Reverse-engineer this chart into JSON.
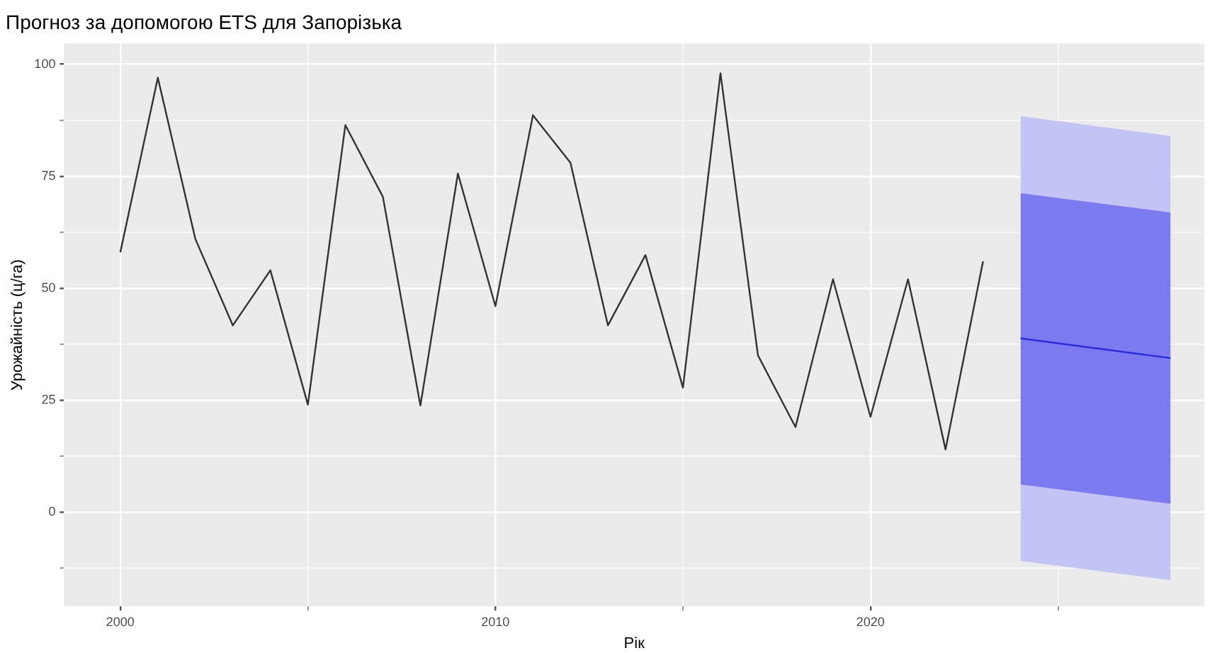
{
  "chart_data": {
    "type": "line",
    "title": "Прогноз за допомогою ETS для Запорізька",
    "xlabel": "Рік",
    "ylabel": "Урожайність (ц/га)",
    "series": [
      {
        "color": "#c3c3f5",
        "x": [
          2024,
          2028
        ],
        "values": [
          null,
          null
        ],
        "lower": [
          -10.9,
          -15.2
        ],
        "upper": [
          88.4,
          84
        ]
      },
      {
        "color": "#7b7bef",
        "x": [
          2024,
          2028
        ],
        "values": [
          null,
          null
        ],
        "lower": [
          6.2,
          1.9
        ],
        "upper": [
          71.2,
          66.9
        ]
      },
      {
        "color": "#333333",
        "x": [
          2000,
          2001,
          2002,
          2003,
          2004,
          2005,
          2006,
          2007,
          2008,
          2009,
          2010,
          2011,
          2012,
          2013,
          2014,
          2015,
          2016,
          2017,
          2018,
          2019,
          2020,
          2021,
          2022,
          2023
        ],
        "values": [
          58,
          97,
          61,
          41.7,
          54,
          24,
          86.4,
          70.4,
          23.8,
          75.6,
          46,
          88.6,
          78,
          41.7,
          57.4,
          27.8,
          98,
          35,
          19,
          52,
          21.3,
          52,
          14,
          56
        ]
      },
      {
        "color": "#2a2ae0",
        "x": [
          2024,
          2028
        ],
        "values": [
          38.8,
          34.4
        ]
      }
    ],
    "xlim": [
      1998.5,
      2028.9
    ],
    "ylim": [
      -21,
      104.6
    ],
    "xticks": [
      2000,
      {
        "value": 2005,
        "label": null
      },
      2010,
      {
        "value": 2015,
        "label": null
      },
      2020,
      {
        "value": 2025,
        "label": null
      }
    ],
    "yticks": [
      {
        "value": -12.5,
        "label": null
      },
      0,
      {
        "value": 12.5,
        "label": null
      },
      25,
      {
        "value": 37.5,
        "label": null
      },
      50,
      {
        "value": 62.5,
        "label": null
      },
      75,
      {
        "value": 87.5,
        "label": null
      },
      100
    ],
    "grid": true,
    "legend": false,
    "marker": "none",
    "line_style": "solid"
  }
}
